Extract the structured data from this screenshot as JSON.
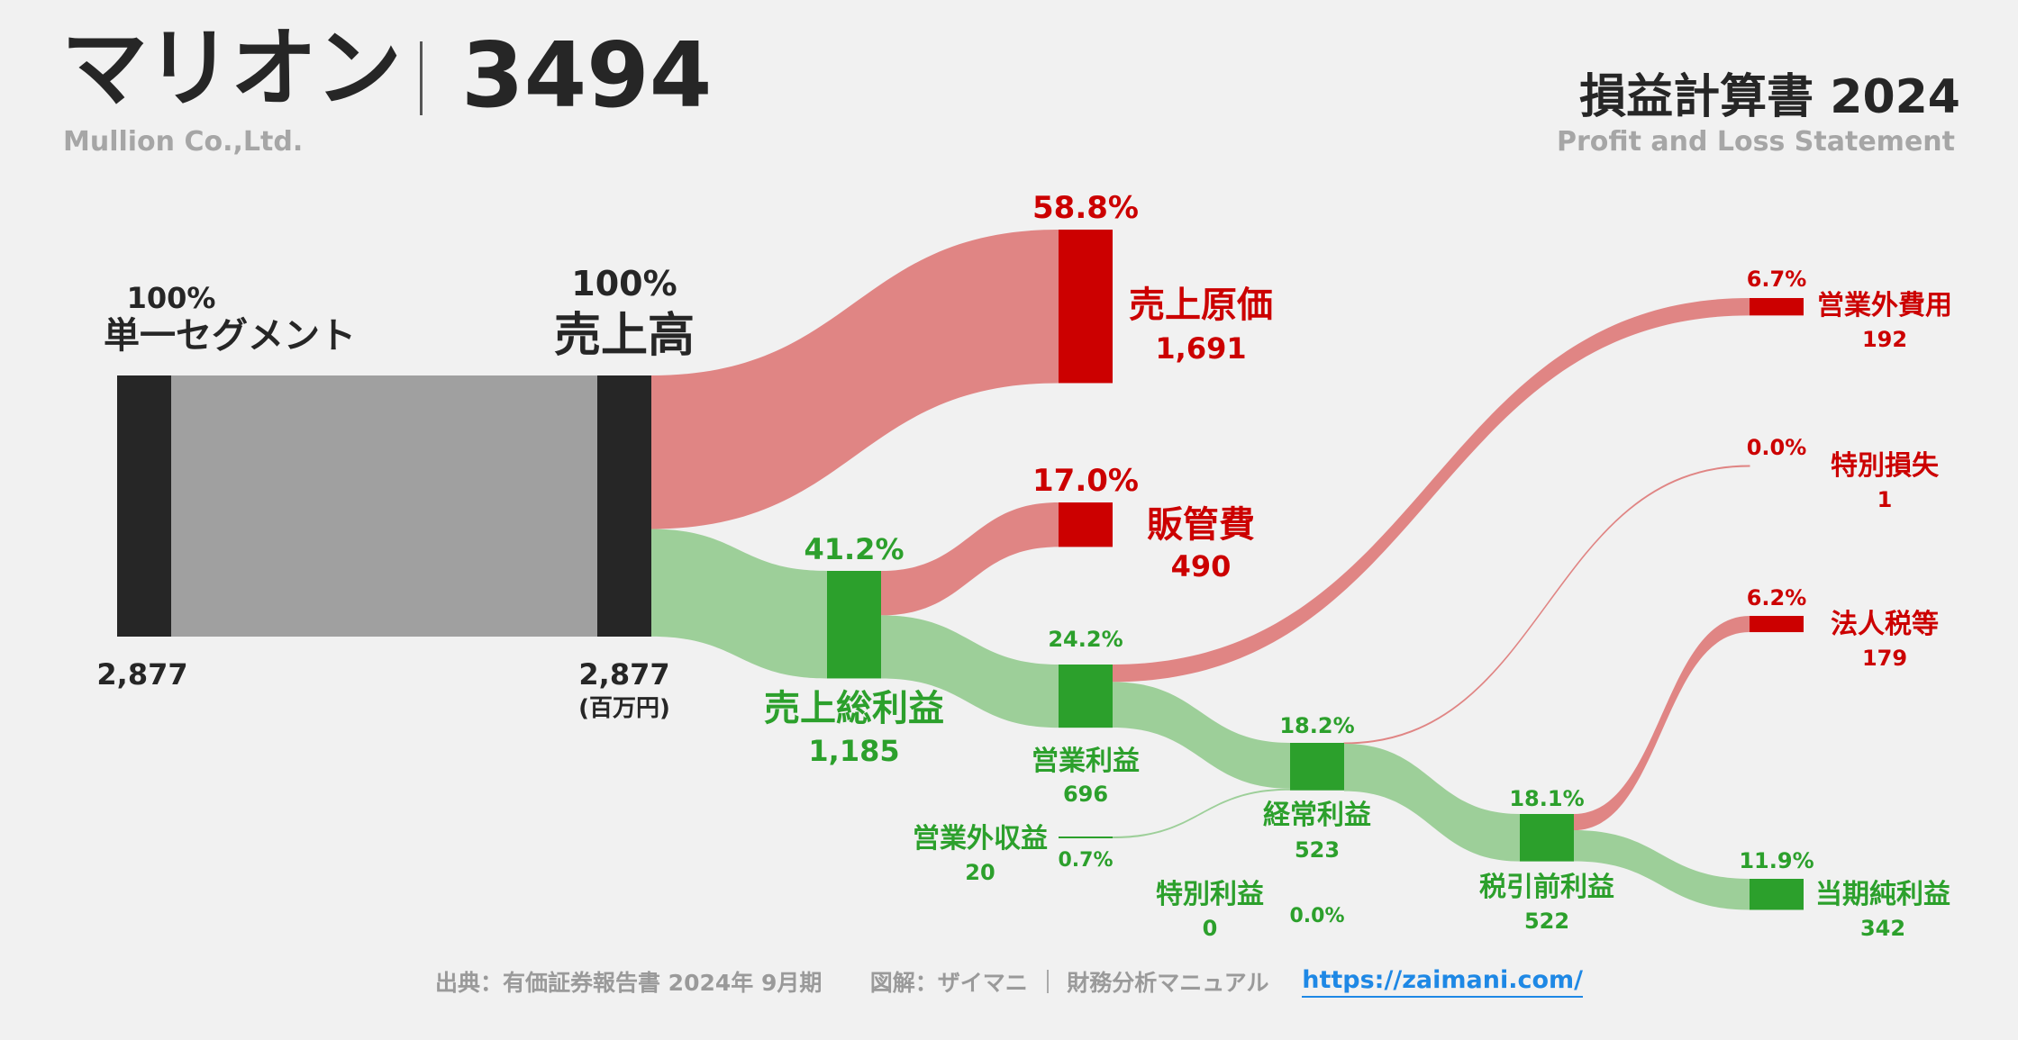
{
  "header": {
    "company": "マリオン",
    "ticker": "3494",
    "company_en": "Mullion Co.,Ltd.",
    "statement_title": "損益計算書 2024",
    "statement_en": "Profit and Loss Statement"
  },
  "footer": {
    "source": "出典：有価証券報告書 2024年 9月期",
    "credit": "図解：ザイマニ",
    "site_name": "財務分析マニュアル",
    "url": "https://zaimani.com/"
  },
  "colors": {
    "dark": "#262626",
    "gray_flow": "#a0a0a0",
    "red": "#cc0000",
    "red_flow": "#e08584",
    "green": "#2ca02c",
    "green_flow": "#9dcf99",
    "green_text": "#2ca02c"
  },
  "chart_data": {
    "type": "sankey",
    "unit": "(百万円)",
    "nodes": [
      {
        "id": "segment",
        "label": "単一セグメント",
        "value": 2877,
        "value_label": "2,877",
        "pct": "100%",
        "kind": "dark"
      },
      {
        "id": "revenue",
        "label": "売上高",
        "value": 2877,
        "value_label": "2,877",
        "pct": "100%",
        "kind": "dark"
      },
      {
        "id": "cogs",
        "label": "売上原価",
        "value": 1691,
        "value_label": "1,691",
        "pct": "58.8%",
        "kind": "cost"
      },
      {
        "id": "gross_profit",
        "label": "売上総利益",
        "value": 1185,
        "value_label": "1,185",
        "pct": "41.2%",
        "kind": "profit"
      },
      {
        "id": "sga",
        "label": "販管費",
        "value": 490,
        "value_label": "490",
        "pct": "17.0%",
        "kind": "cost"
      },
      {
        "id": "operating_profit",
        "label": "営業利益",
        "value": 696,
        "value_label": "696",
        "pct": "24.2%",
        "kind": "profit"
      },
      {
        "id": "non_op_income",
        "label": "営業外収益",
        "value": 20,
        "value_label": "20",
        "pct": "0.7%",
        "kind": "profit"
      },
      {
        "id": "non_op_expense",
        "label": "営業外費用",
        "value": 192,
        "value_label": "192",
        "pct": "6.7%",
        "kind": "cost"
      },
      {
        "id": "ordinary_profit",
        "label": "経常利益",
        "value": 523,
        "value_label": "523",
        "pct": "18.2%",
        "kind": "profit"
      },
      {
        "id": "extraordinary_loss",
        "label": "特別損失",
        "value": 1,
        "value_label": "1",
        "pct": "0.0%",
        "kind": "cost"
      },
      {
        "id": "extraordinary_income",
        "label": "特別利益",
        "value": 0,
        "value_label": "0",
        "pct": "0.0%",
        "kind": "profit"
      },
      {
        "id": "pretax_profit",
        "label": "税引前利益",
        "value": 522,
        "value_label": "522",
        "pct": "18.1%",
        "kind": "profit"
      },
      {
        "id": "income_tax",
        "label": "法人税等",
        "value": 179,
        "value_label": "179",
        "pct": "6.2%",
        "kind": "cost"
      },
      {
        "id": "net_income",
        "label": "当期純利益",
        "value": 342,
        "value_label": "342",
        "pct": "11.9%",
        "kind": "profit"
      }
    ],
    "links": [
      {
        "source": "segment",
        "target": "revenue",
        "value": 2877
      },
      {
        "source": "revenue",
        "target": "cogs",
        "value": 1691
      },
      {
        "source": "revenue",
        "target": "gross_profit",
        "value": 1185
      },
      {
        "source": "gross_profit",
        "target": "sga",
        "value": 490
      },
      {
        "source": "gross_profit",
        "target": "operating_profit",
        "value": 696
      },
      {
        "source": "operating_profit",
        "target": "non_op_expense",
        "value": 192
      },
      {
        "source": "operating_profit",
        "target": "ordinary_profit",
        "value": 503
      },
      {
        "source": "non_op_income",
        "target": "ordinary_profit",
        "value": 20
      },
      {
        "source": "ordinary_profit",
        "target": "extraordinary_loss",
        "value": 1
      },
      {
        "source": "ordinary_profit",
        "target": "pretax_profit",
        "value": 522
      },
      {
        "source": "pretax_profit",
        "target": "income_tax",
        "value": 179
      },
      {
        "source": "pretax_profit",
        "target": "net_income",
        "value": 342
      }
    ]
  }
}
